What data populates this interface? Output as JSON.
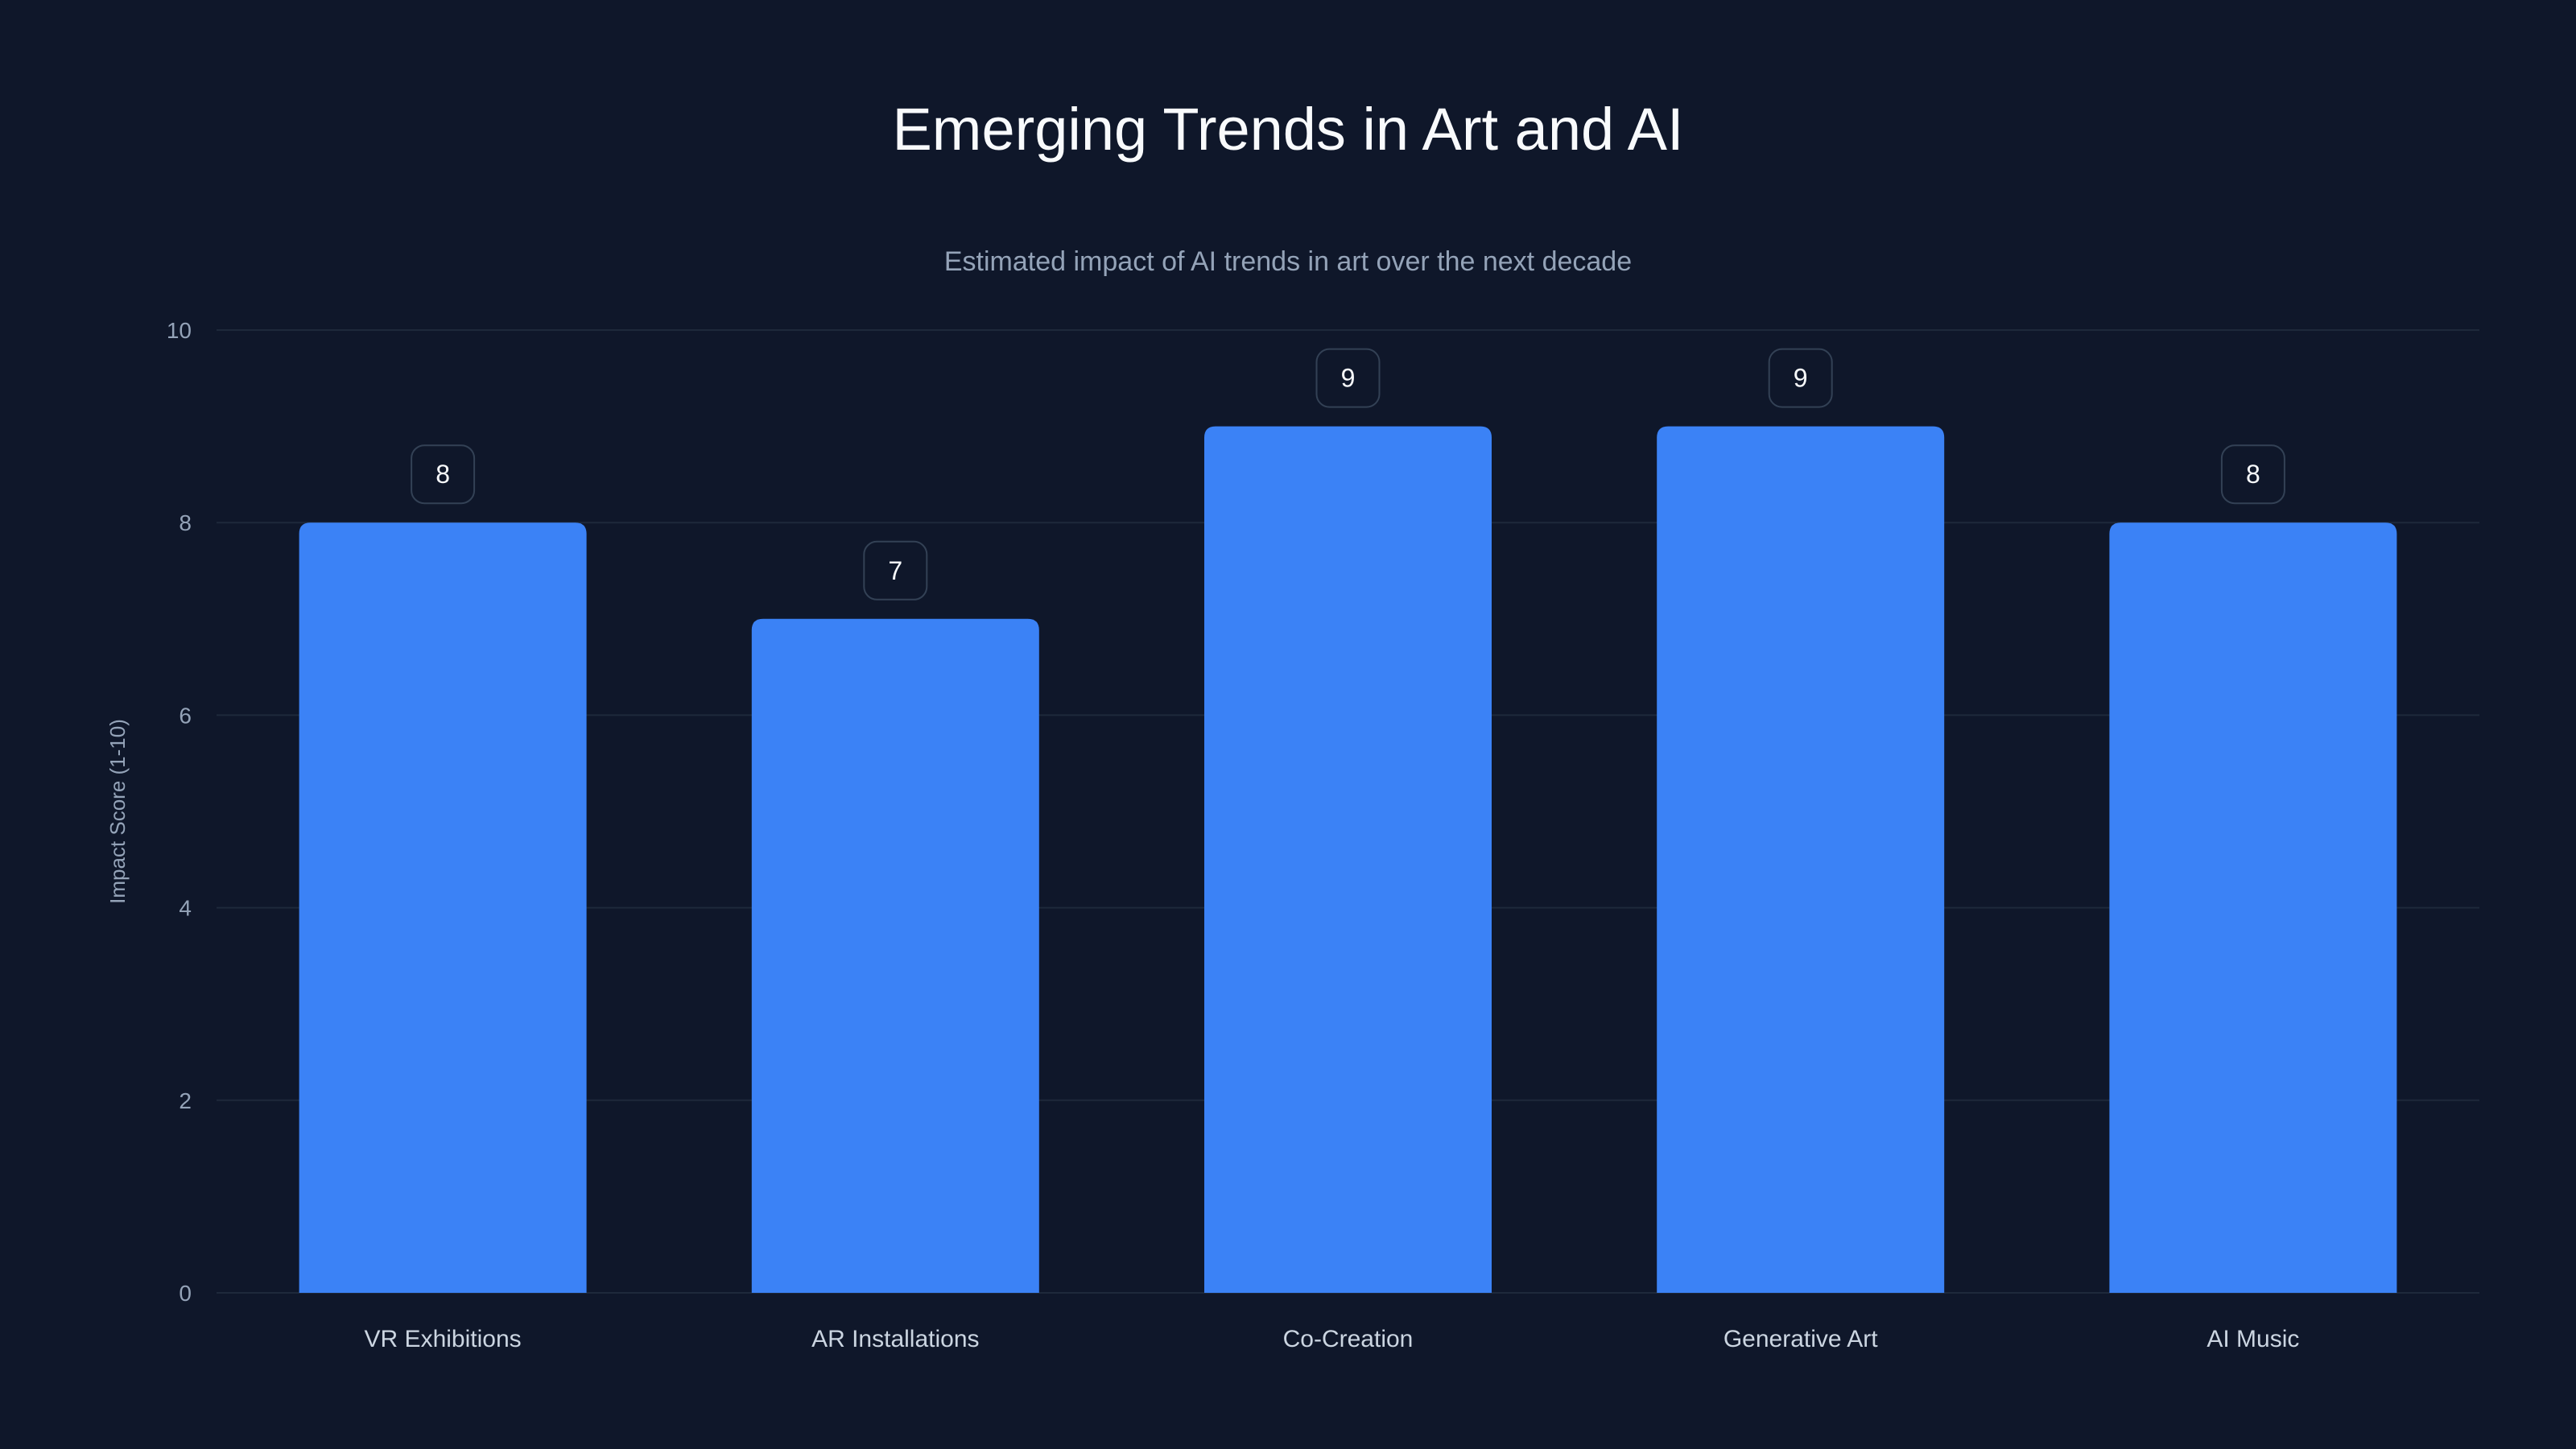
{
  "chart_data": {
    "type": "bar",
    "title": "Emerging Trends in Art and AI",
    "subtitle": "Estimated impact of AI trends in art over the next decade",
    "xlabel": "",
    "ylabel": "Impact Score (1-10)",
    "categories": [
      "VR Exhibitions",
      "AR Installations",
      "Co-Creation",
      "Generative Art",
      "AI Music"
    ],
    "values": [
      8,
      7,
      9,
      9,
      8
    ],
    "data_labels": [
      "8",
      "7",
      "9",
      "9",
      "8"
    ],
    "ylim": [
      0,
      10
    ],
    "yticks": [
      0,
      2,
      4,
      6,
      8,
      10
    ],
    "ytick_labels": [
      "0",
      "2",
      "4",
      "6",
      "8",
      "10"
    ],
    "grid": true,
    "colors": {
      "bar": "#3b82f6",
      "background": "#0f172a",
      "grid": "#1e293b"
    }
  }
}
